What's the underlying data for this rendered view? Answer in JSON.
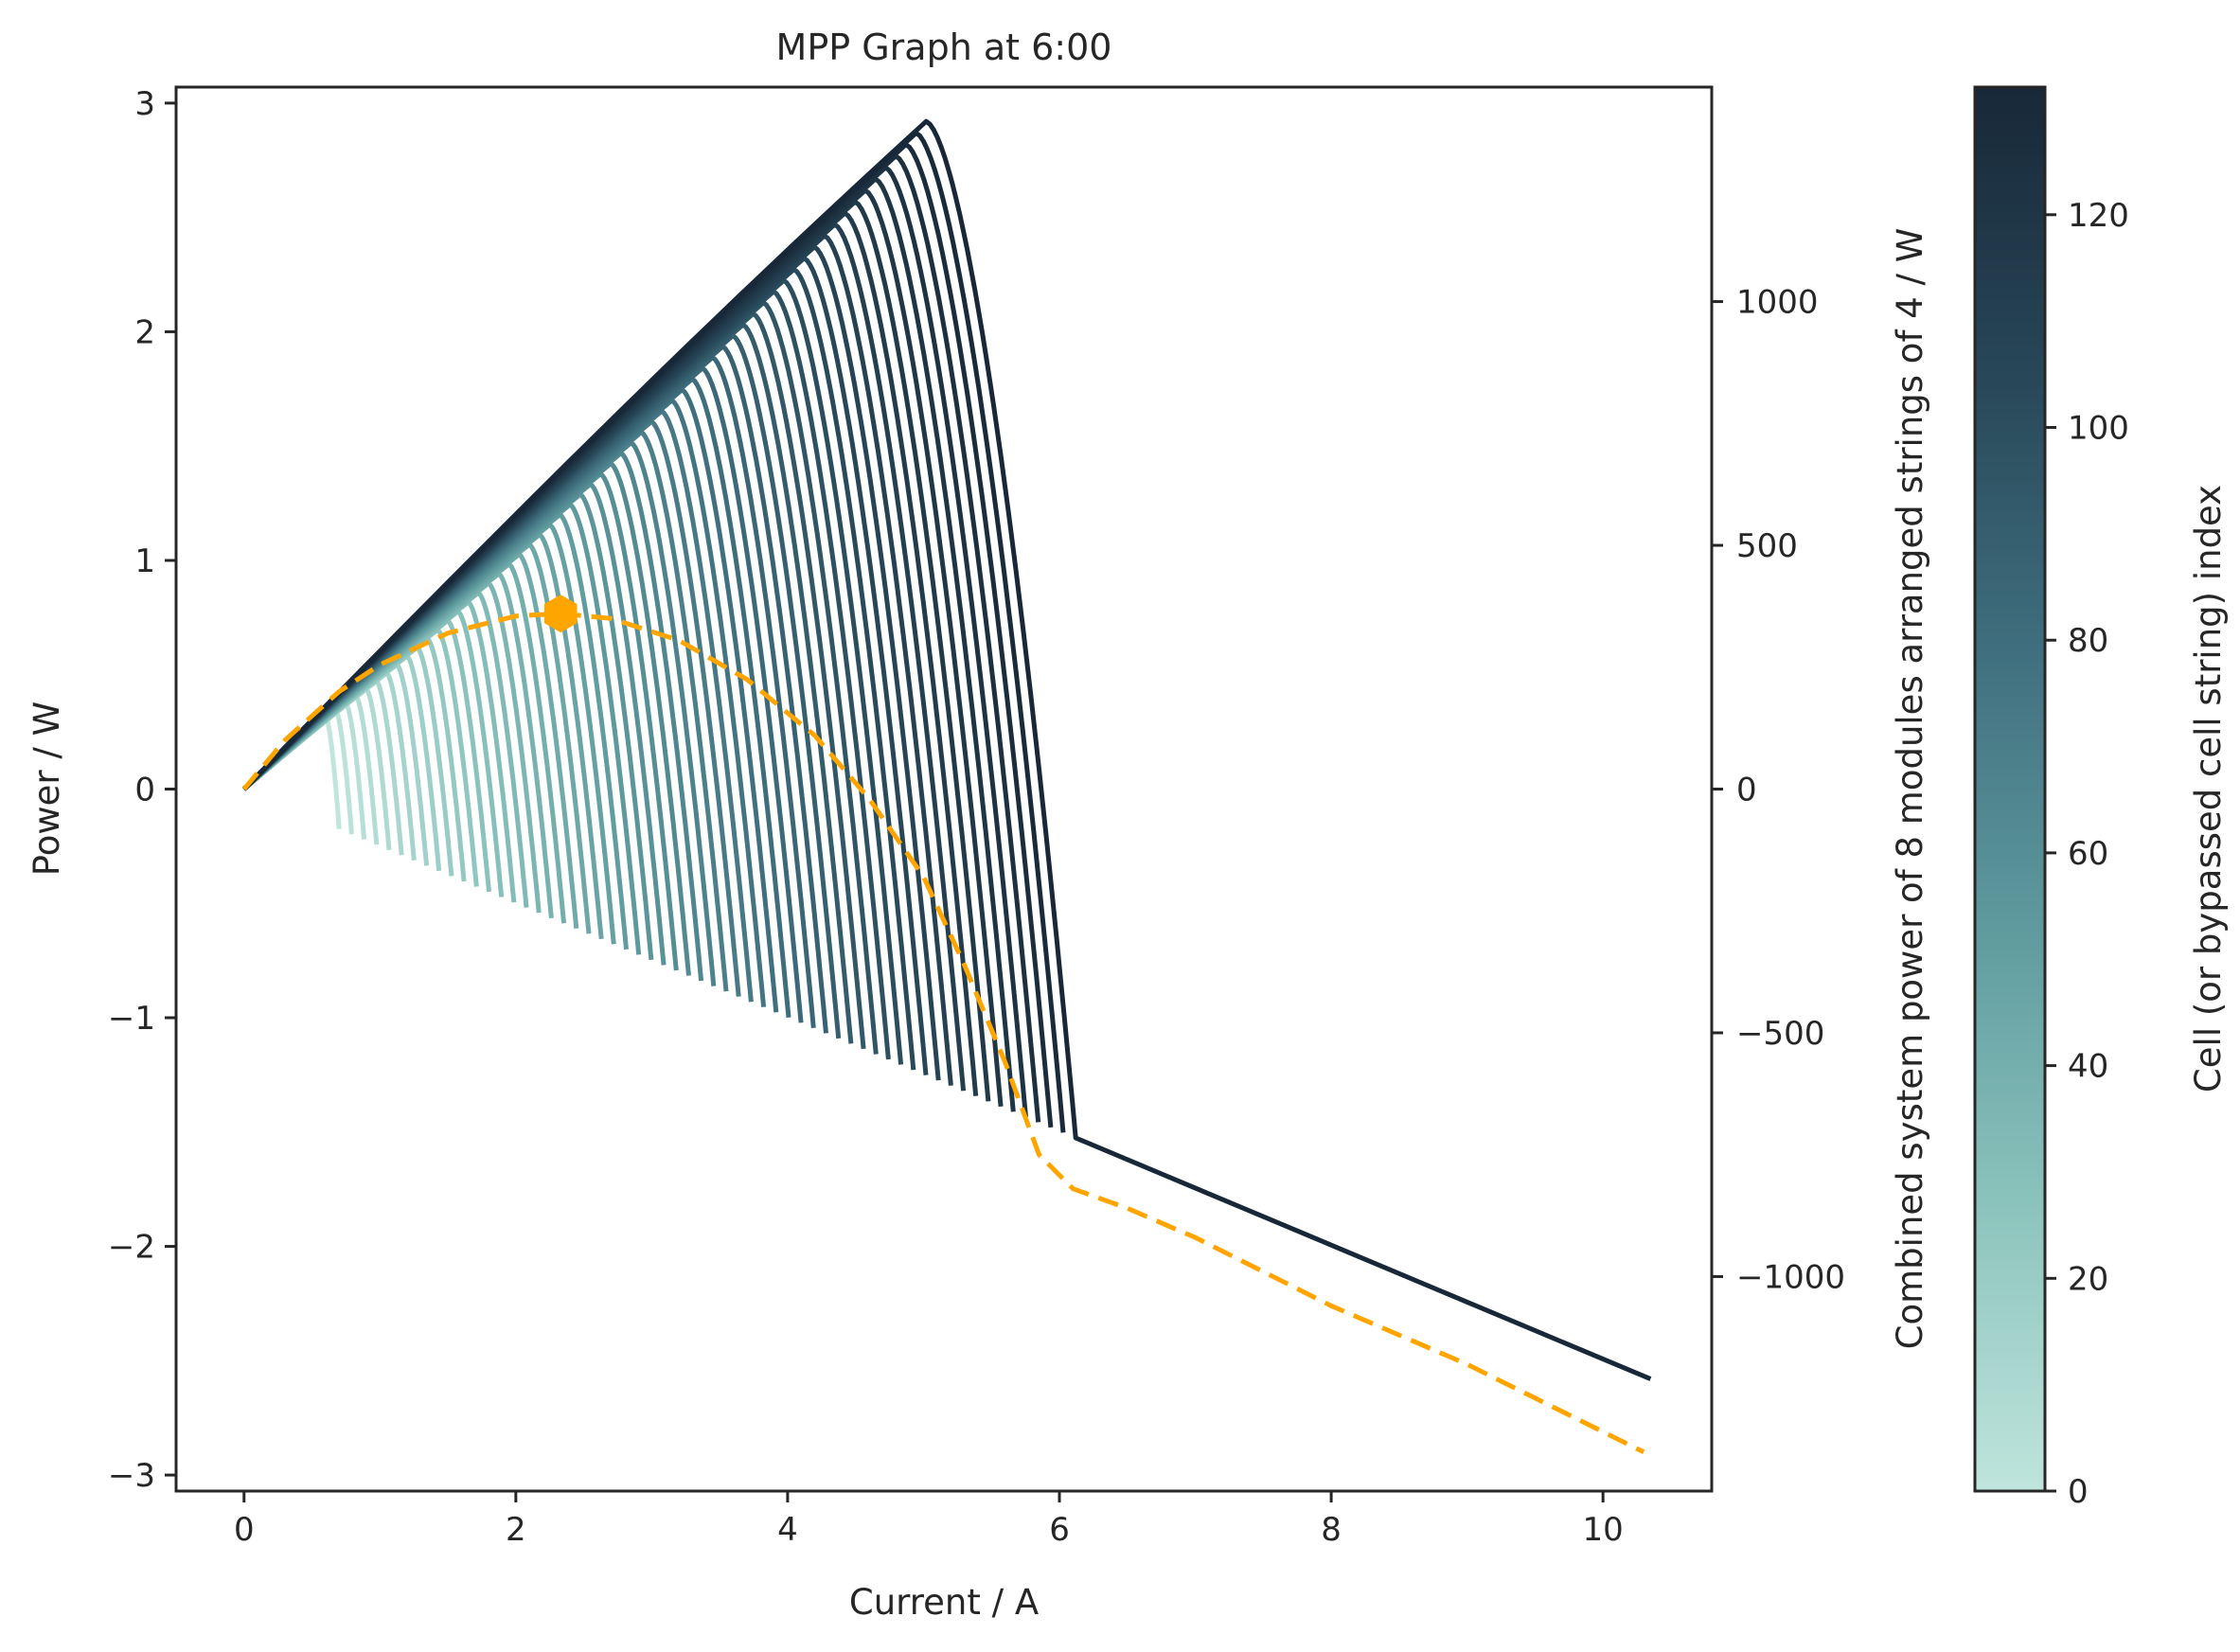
{
  "chart_data": {
    "type": "line",
    "title": "MPP Graph at 6:00",
    "xlabel": "Current / A",
    "ylabel": "Power / W",
    "y2label": "Combined system power of 8 modules arranged strings of 4 / W",
    "colorbar_label": "Cell (or bypassed cell string) index",
    "xlim": [
      -0.5,
      10.8
    ],
    "ylim": [
      -3.07,
      3.07
    ],
    "y2lim": [
      -1440,
      1440
    ],
    "colorbar_range": [
      0,
      132
    ],
    "x_ticks": [
      0,
      2,
      4,
      6,
      8,
      10
    ],
    "y_ticks": [
      -3,
      -2,
      -1,
      0,
      1,
      2,
      3
    ],
    "y2_ticks": [
      -1000,
      -500,
      0,
      500,
      1000
    ],
    "colorbar_ticks": [
      0,
      20,
      40,
      60,
      80,
      100,
      120
    ],
    "x_tick_labels": [
      "0",
      "2",
      "4",
      "6",
      "8",
      "10"
    ],
    "y_tick_labels": [
      "−3",
      "−2",
      "−1",
      "0",
      "1",
      "2",
      "3"
    ],
    "y2_tick_labels": [
      "−1000",
      "−500",
      "0",
      "500",
      "1000"
    ],
    "colorbar_tick_labels": [
      "0",
      "20",
      "40",
      "60",
      "80",
      "100",
      "120"
    ],
    "grid": false,
    "cell_curves": {
      "series_count": 60,
      "colormap": [
        "#bfe5dc",
        "#8cc4bd",
        "#5f9a9e",
        "#3f6f7e",
        "#274657",
        "#182838"
      ],
      "description_values": {
        "lowest_curve_drop_current": 0.7,
        "highest_curve_drop_current": 6.12,
        "max_power": 2.92,
        "shared_tail_end": [
          10.35,
          -2.58
        ]
      }
    },
    "series": [
      {
        "style": "orange dashed",
        "axis": "right",
        "x": [
          0,
          0.3,
          0.7,
          1.0,
          1.5,
          2.0,
          2.33,
          2.7,
          3.2,
          3.7,
          4.2,
          4.6,
          5.0,
          5.3,
          5.6,
          5.85,
          6.1,
          6.5,
          7.0,
          8.0,
          9.0,
          10.3
        ],
        "y": [
          0,
          100,
          200,
          255,
          320,
          355,
          360,
          350,
          305,
          225,
          110,
          -20,
          -180,
          -360,
          -560,
          -750,
          -820,
          -860,
          -920,
          -1060,
          -1180,
          -1360
        ]
      }
    ],
    "mpp_point": {
      "x": 2.33,
      "y": 360,
      "color": "#ffa500",
      "marker": "hexagon"
    },
    "colors": {
      "mpp": "#ffa500",
      "axes": "#262626"
    }
  }
}
